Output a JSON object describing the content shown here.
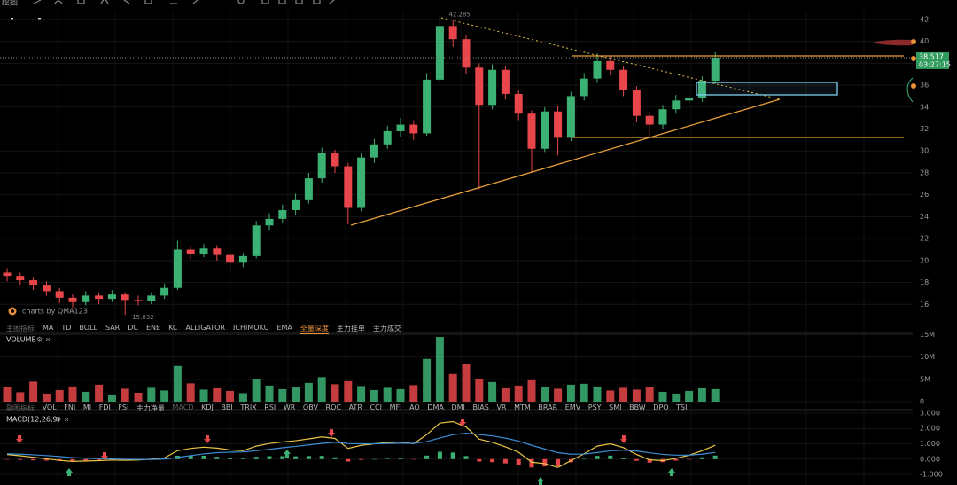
{
  "toolbar": {
    "label": "绘图"
  },
  "watermark": "charts by QMA123",
  "tabs": {
    "main": [
      "主图指标",
      "MA",
      "TD",
      "BOLL",
      "SAR",
      "DC",
      "ENE",
      "KC",
      "ALLIGATOR",
      "ICHIMOKU",
      "EMA",
      "全量深度",
      "主力挂单",
      "主力成交"
    ],
    "sub": [
      "副图指标",
      "VOL",
      "FNI",
      "MI",
      "FDI",
      "FSI",
      "主力净量",
      "MACD",
      "KDJ",
      "BBI",
      "TRIX",
      "RSI",
      "WR",
      "OBV",
      "ROC",
      "ATR",
      "CCI",
      "MFI",
      "AO",
      "DMA",
      "DMI",
      "BIAS",
      "VR",
      "MTM",
      "BRAR",
      "EMV",
      "PSY",
      "SMI",
      "BBW",
      "DPO",
      "TSI"
    ]
  },
  "chart_data": [
    {
      "type": "candlestick",
      "up_color": "#3bb273",
      "down_color": "#e8464a",
      "ylim": [
        14,
        42.8
      ],
      "yticks": [
        16,
        18,
        20,
        22,
        24,
        26,
        28,
        30,
        32,
        34,
        36,
        38,
        40,
        42
      ],
      "countdown": "03:27:15",
      "open": [
        18.9,
        18.6,
        18.2,
        17.8,
        17.2,
        16.6,
        16.2,
        16.8,
        16.5,
        16.9,
        16.4,
        16.3,
        16.8,
        17.5,
        21.0,
        20.6,
        21.1,
        20.5,
        19.8,
        20.4,
        23.2,
        23.8,
        24.6,
        25.5,
        27.5,
        29.8,
        28.6,
        24.8,
        29.4,
        30.6,
        31.8,
        32.4,
        31.6,
        36.5,
        41.4,
        40.2,
        37.6,
        34.2,
        37.4,
        35.2,
        33.4,
        30.2,
        33.6,
        31.2,
        35.0,
        36.6,
        38.2,
        37.4,
        35.6,
        33.2,
        32.4,
        33.8,
        34.6,
        34.8,
        36.4
      ],
      "high": [
        19.3,
        18.9,
        18.5,
        18.1,
        17.5,
        16.9,
        17.2,
        17.1,
        17.3,
        17.1,
        16.8,
        17.1,
        17.9,
        21.8,
        21.4,
        21.5,
        21.4,
        20.8,
        20.7,
        23.6,
        24.3,
        25.1,
        26.1,
        28.0,
        30.3,
        30.1,
        28.9,
        29.8,
        31.1,
        32.3,
        33.0,
        32.8,
        37.1,
        42.285,
        41.9,
        40.6,
        38.0,
        37.9,
        37.7,
        35.6,
        33.7,
        34.0,
        34.1,
        35.4,
        37.1,
        38.9,
        38.7,
        37.7,
        35.9,
        33.6,
        34.2,
        35.1,
        35.5,
        36.8,
        39.0
      ],
      "low": [
        18.1,
        17.8,
        17.3,
        16.8,
        16.1,
        15.7,
        15.9,
        16.0,
        16.2,
        15.032,
        15.9,
        16.0,
        16.5,
        17.3,
        20.1,
        20.3,
        20.0,
        19.3,
        19.4,
        20.2,
        22.8,
        23.4,
        24.2,
        25.2,
        27.1,
        28.0,
        23.3,
        24.5,
        28.9,
        30.2,
        31.3,
        31.0,
        31.4,
        36.2,
        39.5,
        37.0,
        26.5,
        33.8,
        34.7,
        32.8,
        28.0,
        29.9,
        29.6,
        30.9,
        34.6,
        36.2,
        36.9,
        35.0,
        32.6,
        31.2,
        32.0,
        33.4,
        34.1,
        34.5,
        36.1
      ],
      "close": [
        18.6,
        18.2,
        17.8,
        17.2,
        16.6,
        16.2,
        16.8,
        16.5,
        16.9,
        16.4,
        16.3,
        16.8,
        17.5,
        21.0,
        20.6,
        21.1,
        20.5,
        19.8,
        20.4,
        23.2,
        23.8,
        24.6,
        25.5,
        27.5,
        29.8,
        28.6,
        24.8,
        29.4,
        30.6,
        31.8,
        32.4,
        31.6,
        36.5,
        41.4,
        40.2,
        37.6,
        34.2,
        37.4,
        35.2,
        33.4,
        30.2,
        33.6,
        31.2,
        35.0,
        36.6,
        38.2,
        37.4,
        35.6,
        33.2,
        32.4,
        33.8,
        34.6,
        34.8,
        36.4,
        38.517
      ]
    },
    {
      "type": "bar",
      "title": "VOLUME",
      "ylim": [
        0,
        15.3
      ],
      "yticks": [
        0,
        {
          "value": 5,
          "label": "5M"
        },
        {
          "value": 10,
          "label": "10M"
        },
        {
          "value": 15,
          "label": "15M"
        }
      ],
      "values": [
        3.2,
        2.1,
        4.5,
        1.8,
        2.6,
        3.4,
        2.2,
        3.8,
        1.6,
        2.9,
        2.0,
        3.1,
        2.5,
        8.0,
        4.1,
        2.7,
        3.0,
        2.4,
        1.9,
        5.0,
        3.6,
        2.8,
        3.3,
        4.2,
        5.5,
        3.9,
        4.6,
        3.5,
        2.6,
        3.1,
        2.8,
        3.7,
        9.6,
        14.5,
        6.2,
        8.5,
        5.1,
        4.4,
        3.0,
        3.6,
        4.8,
        3.2,
        2.9,
        3.8,
        4.0,
        3.4,
        2.5,
        3.1,
        2.7,
        3.3,
        2.2,
        1.8,
        2.4,
        3.0,
        2.8
      ]
    },
    {
      "type": "line",
      "title": "MACD(12,26,9)",
      "ylim": [
        -1.46,
        3.23
      ],
      "yticks": [
        {
          "value": 3,
          "label": "3.000"
        },
        {
          "value": 2,
          "label": "2.000"
        },
        {
          "value": 1,
          "label": "1.000"
        },
        {
          "value": 0,
          "label": "0.000"
        },
        {
          "value": -1,
          "label": "-1.000"
        }
      ],
      "series": [
        {
          "color": "#e8c547",
          "values": [
            0.3,
            0.22,
            0.12,
            0.02,
            -0.08,
            -0.15,
            -0.12,
            -0.1,
            -0.06,
            -0.08,
            -0.06,
            0.0,
            0.08,
            0.55,
            0.7,
            0.78,
            0.72,
            0.6,
            0.55,
            0.85,
            1.02,
            1.12,
            1.2,
            1.32,
            1.45,
            1.35,
            0.7,
            0.9,
            1.0,
            1.08,
            1.12,
            1.0,
            1.6,
            2.35,
            2.45,
            2.1,
            1.3,
            1.1,
            0.8,
            0.45,
            -0.2,
            -0.3,
            -0.55,
            -0.1,
            0.35,
            0.85,
            1.0,
            0.75,
            0.3,
            -0.05,
            -0.1,
            0.05,
            0.25,
            0.55,
            0.9
          ]
        },
        {
          "color": "#3d8fd6",
          "values": [
            0.35,
            0.32,
            0.28,
            0.23,
            0.17,
            0.1,
            0.06,
            0.03,
            0.01,
            -0.01,
            -0.02,
            -0.02,
            0.0,
            0.11,
            0.23,
            0.34,
            0.42,
            0.45,
            0.47,
            0.55,
            0.64,
            0.74,
            0.83,
            0.93,
            1.03,
            1.1,
            1.02,
            1.0,
            1.0,
            1.02,
            1.04,
            1.03,
            1.14,
            1.38,
            1.59,
            1.69,
            1.61,
            1.51,
            1.37,
            1.18,
            0.9,
            0.66,
            0.42,
            0.32,
            0.33,
            0.43,
            0.54,
            0.59,
            0.53,
            0.41,
            0.31,
            0.26,
            0.26,
            0.32,
            0.44
          ]
        }
      ],
      "histogram": [
        -0.03,
        -0.05,
        -0.08,
        -0.1,
        -0.12,
        -0.12,
        -0.09,
        -0.06,
        -0.04,
        -0.03,
        -0.02,
        0.01,
        0.04,
        0.22,
        0.24,
        0.22,
        0.15,
        0.08,
        0.04,
        0.15,
        0.19,
        0.19,
        0.18,
        0.2,
        0.21,
        0.12,
        -0.16,
        -0.05,
        0,
        0.03,
        0.04,
        -0.02,
        0.23,
        0.48,
        0.43,
        0.2,
        -0.16,
        -0.2,
        -0.28,
        -0.36,
        -0.55,
        -0.48,
        -0.48,
        -0.21,
        0.01,
        0.21,
        0.23,
        0.08,
        -0.11,
        -0.23,
        -0.2,
        -0.1,
        -0.01,
        0.12,
        0.23
      ]
    }
  ]
}
